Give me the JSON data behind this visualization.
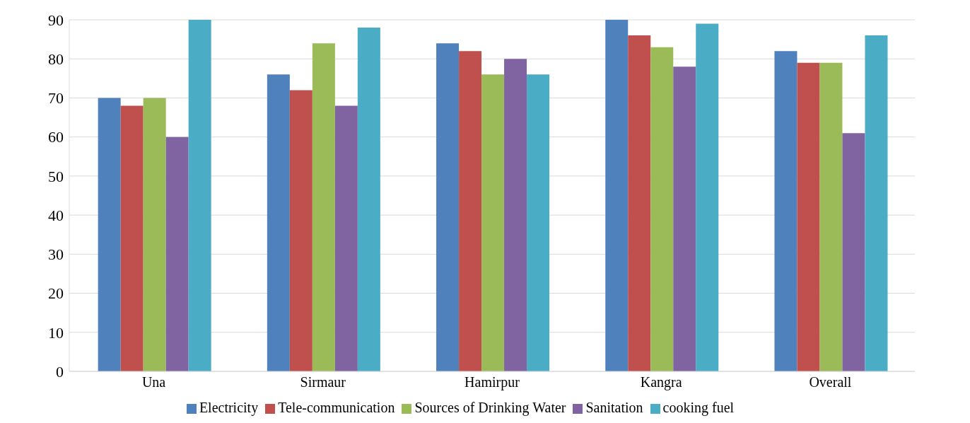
{
  "chart_data": {
    "type": "bar",
    "categories": [
      "Una",
      "Sirmaur",
      "Hamirpur",
      "Kangra",
      "Overall"
    ],
    "series": [
      {
        "name": "Electricity",
        "color": "#4f81bd",
        "values": [
          70,
          76,
          84,
          90,
          82
        ]
      },
      {
        "name": "Tele-communication",
        "color": "#c0504d",
        "values": [
          68,
          72,
          82,
          86,
          79
        ]
      },
      {
        "name": "Sources of Drinking Water",
        "color": "#9bbb59",
        "values": [
          70,
          84,
          76,
          83,
          79
        ]
      },
      {
        "name": "Sanitation",
        "color": "#8064a2",
        "values": [
          60,
          68,
          80,
          78,
          61
        ]
      },
      {
        "name": "cooking fuel",
        "color": "#4bacc6",
        "values": [
          90,
          88,
          76,
          89,
          86
        ]
      }
    ],
    "ylim": [
      0,
      90
    ],
    "yticks": [
      0,
      10,
      20,
      30,
      40,
      50,
      60,
      70,
      80,
      90
    ],
    "grid": "y",
    "legend": "bottom"
  }
}
